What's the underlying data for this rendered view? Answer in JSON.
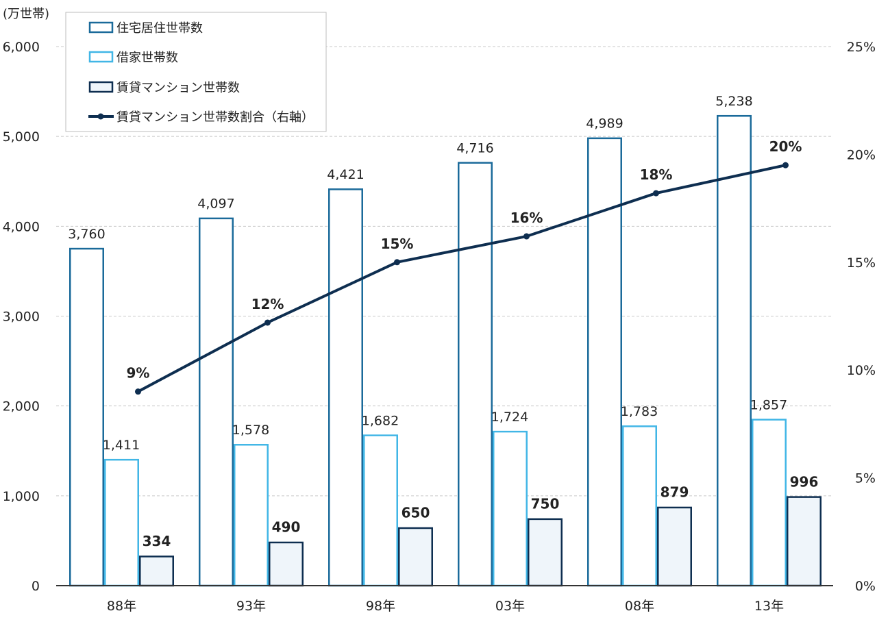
{
  "chart_data": {
    "type": "bar",
    "y_unit": "(万世帯)",
    "categories": [
      "88年",
      "93年",
      "98年",
      "03年",
      "08年",
      "13年"
    ],
    "ylim": [
      0,
      6000
    ],
    "yticks": [
      "0",
      "1,000",
      "2,000",
      "3,000",
      "4,000",
      "5,000",
      "6,000"
    ],
    "y2lim": [
      0,
      25
    ],
    "y2ticks": [
      "0%",
      "5%",
      "10%",
      "15%",
      "20%",
      "25%"
    ],
    "grid": true,
    "legend_position": "top-left",
    "series": [
      {
        "name": "住宅居住世帯数",
        "type": "bar",
        "color": "#1a6a9a",
        "fill": "#ffffff",
        "values": [
          3760,
          4097,
          4421,
          4716,
          4989,
          5238
        ],
        "labels": [
          "3,760",
          "4,097",
          "4,421",
          "4,716",
          "4,989",
          "5,238"
        ]
      },
      {
        "name": "借家世帯数",
        "type": "bar",
        "color": "#41b6e6",
        "fill": "#ffffff",
        "values": [
          1411,
          1578,
          1682,
          1724,
          1783,
          1857
        ],
        "labels": [
          "1,411",
          "1,578",
          "1,682",
          "1,724",
          "1,783",
          "1,857"
        ]
      },
      {
        "name": "賃貸マンション世帯数",
        "type": "bar",
        "color": "#0e2e50",
        "fill": "#eff5fa",
        "values": [
          334,
          490,
          650,
          750,
          879,
          996
        ],
        "labels": [
          "334",
          "490",
          "650",
          "750",
          "879",
          "996"
        ]
      },
      {
        "name": "賃貸マンション世帯数割合（右軸）",
        "type": "line",
        "axis": "right",
        "color": "#0e2e50",
        "values": [
          9.0,
          12.2,
          15.0,
          16.2,
          18.2,
          19.5
        ],
        "labels": [
          "9%",
          "12%",
          "15%",
          "16%",
          "18%",
          "20%"
        ]
      }
    ]
  }
}
